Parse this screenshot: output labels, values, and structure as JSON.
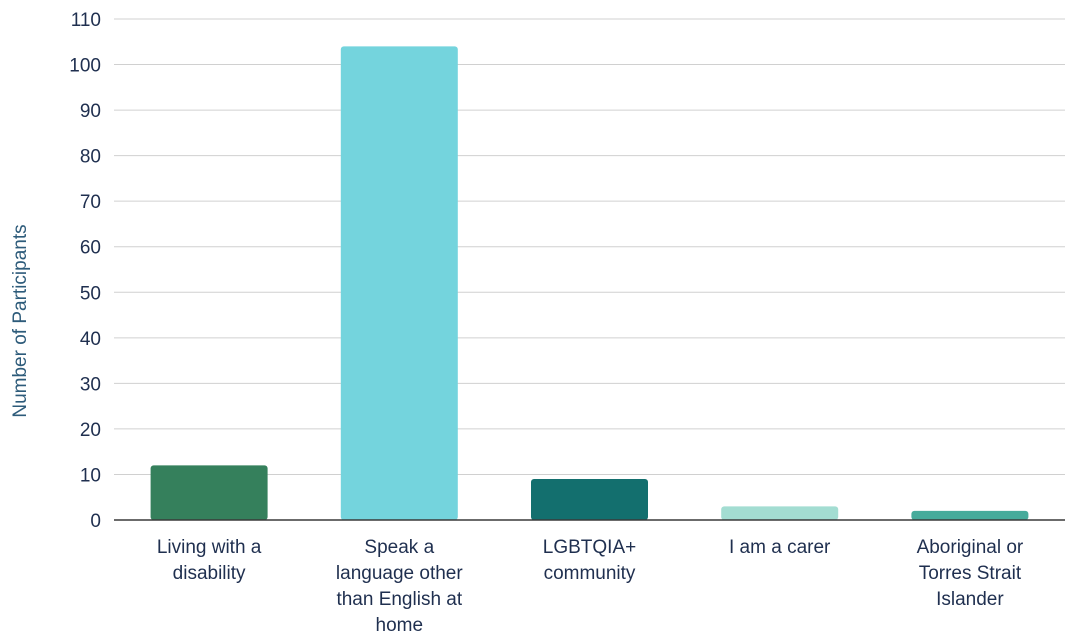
{
  "chart_data": {
    "type": "bar",
    "title": "",
    "xlabel": "",
    "ylabel": "Number of Participants",
    "ylim": [
      0,
      110
    ],
    "yticks": [
      0,
      10,
      20,
      30,
      40,
      50,
      60,
      70,
      80,
      90,
      100,
      110
    ],
    "grid": true,
    "categories": [
      [
        "Living with a",
        "disability"
      ],
      [
        "Speak a",
        "language other",
        "than English at",
        "home"
      ],
      [
        "LGBTQIA+",
        "community"
      ],
      [
        "I am a carer"
      ],
      [
        "Aboriginal or",
        "Torres Strait",
        "Islander"
      ]
    ],
    "values": [
      12,
      104,
      9,
      3,
      2
    ],
    "colors": [
      "#35805c",
      "#74d4dd",
      "#136f6e",
      "#a3ddd2",
      "#46ab9b"
    ]
  }
}
